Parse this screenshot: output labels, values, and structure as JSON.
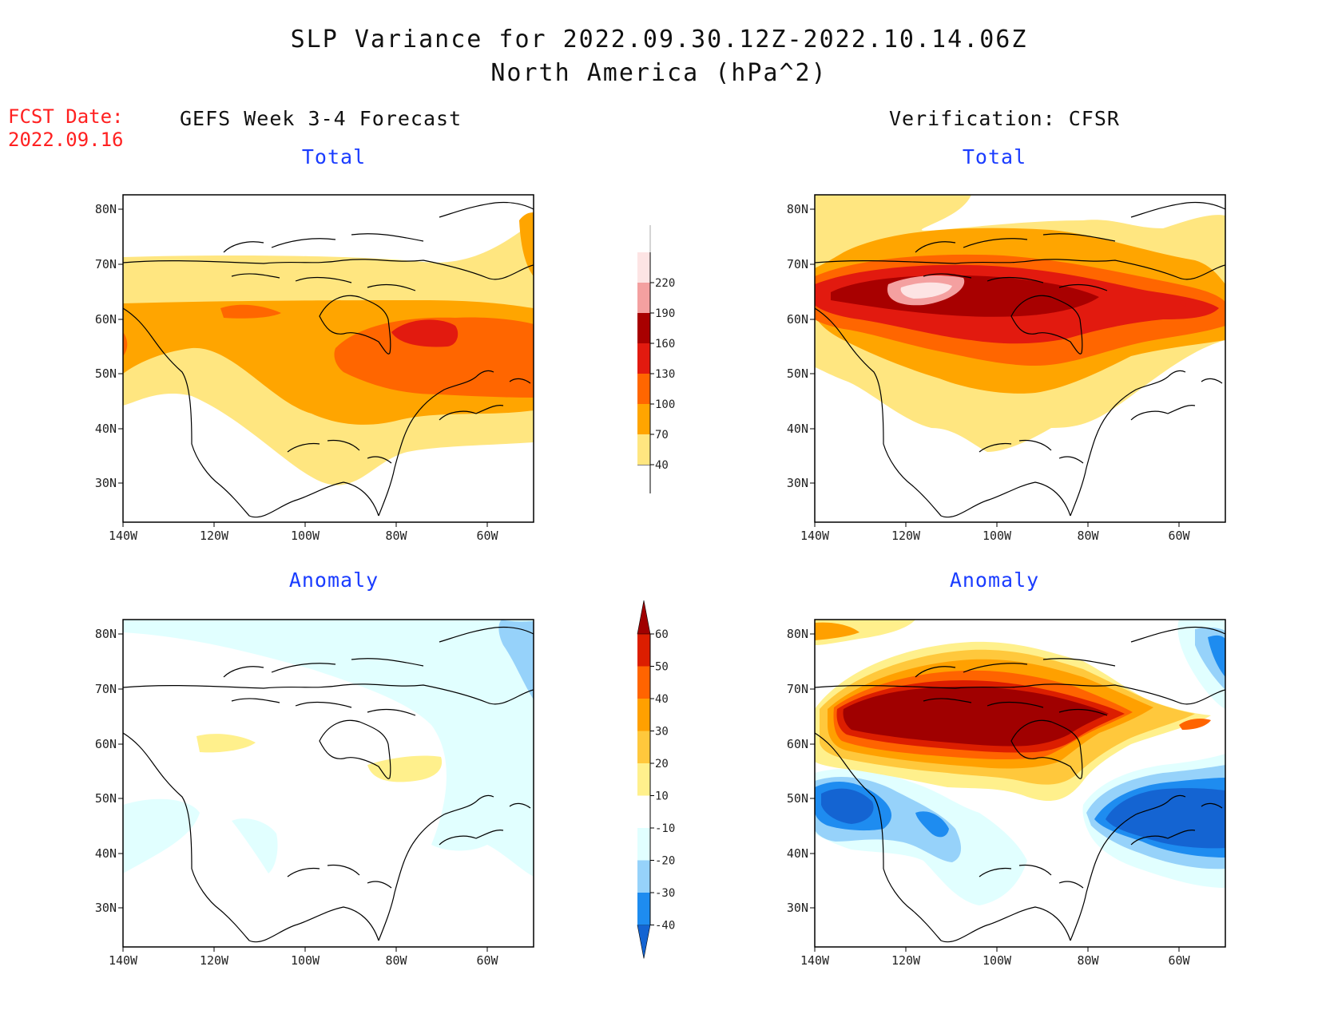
{
  "title": {
    "line1": "SLP Variance for 2022.09.30.12Z-2022.10.14.06Z",
    "line2": "North America (hPa^2)"
  },
  "fcst": {
    "label": "FCST Date:",
    "date": "2022.09.16"
  },
  "columns": {
    "left": "GEFS Week 3-4 Forecast",
    "right": "Verification: CFSR"
  },
  "panel_titles": {
    "total": "Total",
    "anomaly": "Anomaly"
  },
  "axes": {
    "lat_labels": [
      "80N",
      "70N",
      "60N",
      "50N",
      "40N",
      "30N"
    ],
    "lon_labels": [
      "140W",
      "120W",
      "100W",
      "80W",
      "60W"
    ]
  },
  "total_colorbar": {
    "levels": [
      "40",
      "70",
      "100",
      "130",
      "160",
      "190",
      "220"
    ],
    "colors": [
      "#ffe680",
      "#ffa500",
      "#ff6600",
      "#e21a0f",
      "#a80000",
      "#f4a0a0",
      "#fde4e4"
    ]
  },
  "anomaly_colorbar": {
    "levels": [
      "-40",
      "-30",
      "-20",
      "-10",
      "10",
      "20",
      "30",
      "40",
      "50",
      "60"
    ],
    "colors": [
      "#1464d2",
      "#1e8cf0",
      "#96d2fa",
      "#e1ffff",
      "#ffffff",
      "#fff08c",
      "#ffc83c",
      "#ffa000",
      "#ff6400",
      "#dc1e00",
      "#a00000"
    ]
  },
  "chart_data": [
    {
      "type": "heatmap",
      "panel": "GEFS Week 3-4 Forecast - Total",
      "units": "hPa^2",
      "x_range": [
        "140W",
        "50W"
      ],
      "y_range": [
        "25N",
        "85N"
      ],
      "max_region": "central Canada near Hudson Bay, 130-160"
    },
    {
      "type": "heatmap",
      "panel": "Verification: CFSR - Total",
      "units": "hPa^2",
      "x_range": [
        "140W",
        "50W"
      ],
      "y_range": [
        "25N",
        "85N"
      ],
      "max_region": "northwest Canada, >190"
    },
    {
      "type": "heatmap",
      "panel": "GEFS Week 3-4 Forecast - Anomaly",
      "units": "hPa^2",
      "x_range": [
        "140W",
        "50W"
      ],
      "y_range": [
        "25N",
        "85N"
      ],
      "range": [
        -20,
        20
      ]
    },
    {
      "type": "heatmap",
      "panel": "Verification: CFSR - Anomaly",
      "units": "hPa^2",
      "x_range": [
        "140W",
        "50W"
      ],
      "y_range": [
        "25N",
        "85N"
      ],
      "range": [
        -40,
        60
      ]
    }
  ]
}
